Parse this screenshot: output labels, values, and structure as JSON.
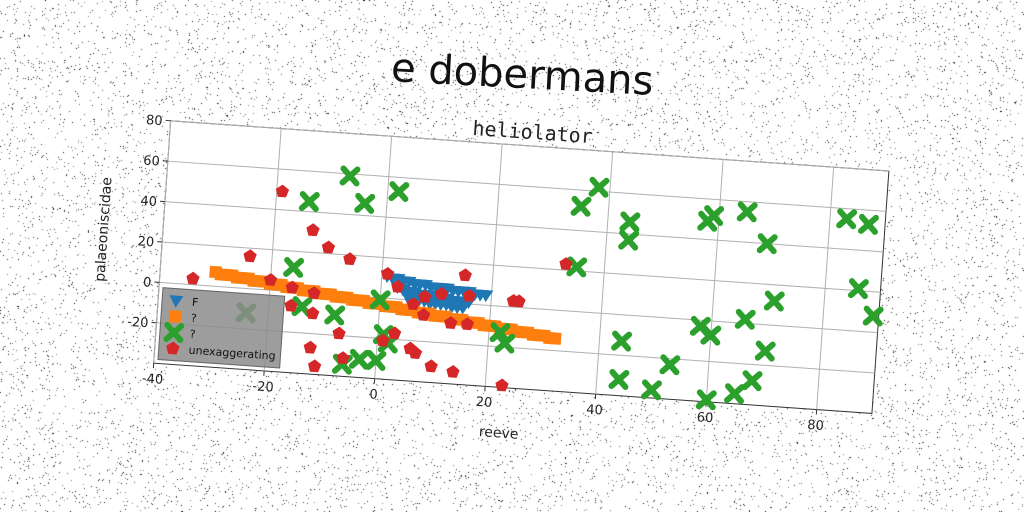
{
  "chart_data": {
    "type": "scatter",
    "title": "e dobermans",
    "subtitle": "heliolator",
    "xlabel": "reeve",
    "ylabel": "palaeoniscidae",
    "xlim": [
      -40,
      90
    ],
    "ylim": [
      -40,
      80
    ],
    "xticks": [
      "-40",
      "-20",
      "0",
      "20",
      "40",
      "60",
      "80"
    ],
    "yticks": [
      "-20",
      "0",
      "20",
      "40",
      "60",
      "80"
    ],
    "grid": true,
    "legend_position": "bottom-left",
    "colors": {
      "blue": "#1f77b4",
      "orange": "#ff7f0e",
      "green": "#2ca02c",
      "red": "#d62728"
    },
    "series": [
      {
        "name": "F",
        "marker": "triangle-down",
        "color": "#1f77b4",
        "points": [
          [
            1,
            11
          ],
          [
            2,
            10
          ],
          [
            3,
            10
          ],
          [
            4,
            9
          ],
          [
            5,
            9
          ],
          [
            6,
            8
          ],
          [
            7,
            8
          ],
          [
            8,
            8
          ],
          [
            9,
            7
          ],
          [
            10,
            7
          ],
          [
            11,
            7
          ],
          [
            12,
            7
          ],
          [
            13,
            6
          ],
          [
            14,
            6
          ],
          [
            15,
            6
          ],
          [
            16,
            6
          ],
          [
            17,
            5
          ],
          [
            18,
            5
          ],
          [
            19,
            5
          ],
          [
            3,
            6
          ],
          [
            4,
            5
          ],
          [
            5,
            4
          ],
          [
            6,
            4
          ],
          [
            7,
            3
          ],
          [
            8,
            3
          ],
          [
            9,
            3
          ],
          [
            10,
            2
          ],
          [
            11,
            2
          ],
          [
            12,
            2
          ],
          [
            13,
            1
          ],
          [
            14,
            1
          ],
          [
            15,
            1
          ],
          [
            16,
            1
          ],
          [
            5,
            1
          ],
          [
            6,
            0
          ],
          [
            7,
            0
          ],
          [
            8,
            0
          ],
          [
            9,
            -1
          ],
          [
            10,
            -1
          ],
          [
            11,
            -1
          ],
          [
            12,
            -1
          ],
          [
            13,
            -2
          ],
          [
            14,
            -2
          ],
          [
            15,
            -2
          ]
        ]
      },
      {
        "name": "?",
        "marker": "square",
        "color": "#ff7f0e",
        "points": [
          [
            -30,
            7
          ],
          [
            -29,
            6
          ],
          [
            -28,
            6
          ],
          [
            -27,
            6
          ],
          [
            -26,
            5
          ],
          [
            -25,
            5
          ],
          [
            -24,
            5
          ],
          [
            -23,
            4
          ],
          [
            -22,
            4
          ],
          [
            -21,
            4
          ],
          [
            -20,
            3
          ],
          [
            -19,
            3
          ],
          [
            -18,
            3
          ],
          [
            -17,
            2
          ],
          [
            -16,
            2
          ],
          [
            -15,
            2
          ],
          [
            -14,
            1
          ],
          [
            -13,
            1
          ],
          [
            -12,
            1
          ],
          [
            -11,
            0
          ],
          [
            -10,
            0
          ],
          [
            -9,
            0
          ],
          [
            -8,
            -1
          ],
          [
            -7,
            -1
          ],
          [
            -6,
            -1
          ],
          [
            -5,
            -2
          ],
          [
            -4,
            -2
          ],
          [
            -3,
            -2
          ],
          [
            -2,
            -3
          ],
          [
            -1,
            -3
          ],
          [
            0,
            -3
          ],
          [
            1,
            -4
          ],
          [
            2,
            -4
          ],
          [
            3,
            -4
          ],
          [
            4,
            -5
          ],
          [
            5,
            -5
          ],
          [
            6,
            -5
          ],
          [
            7,
            -6
          ],
          [
            8,
            -6
          ],
          [
            9,
            -6
          ],
          [
            10,
            -7
          ],
          [
            11,
            -7
          ],
          [
            12,
            -7
          ],
          [
            13,
            -8
          ],
          [
            14,
            -8
          ],
          [
            15,
            -8
          ],
          [
            16,
            -9
          ],
          [
            17,
            -9
          ],
          [
            18,
            -9
          ],
          [
            19,
            -10
          ],
          [
            20,
            -10
          ],
          [
            21,
            -10
          ],
          [
            22,
            -11
          ],
          [
            23,
            -11
          ],
          [
            24,
            -11
          ],
          [
            25,
            -12
          ],
          [
            26,
            -12
          ],
          [
            27,
            -12
          ],
          [
            28,
            -13
          ],
          [
            29,
            -13
          ],
          [
            30,
            -13
          ],
          [
            31,
            -14
          ],
          [
            32,
            -14
          ]
        ]
      },
      {
        "name": "?",
        "marker": "x-cross",
        "color": "#2ca02c",
        "points": [
          [
            -7,
            59
          ],
          [
            -4,
            46
          ],
          [
            2,
            53
          ],
          [
            -14,
            45
          ],
          [
            -16,
            12
          ],
          [
            -14,
            -7
          ],
          [
            -8,
            -10
          ],
          [
            0,
            -1
          ],
          [
            1,
            -18
          ],
          [
            2,
            -22
          ],
          [
            0,
            -31
          ],
          [
            -6,
            -34
          ],
          [
            -3,
            -31
          ],
          [
            -24,
            -12
          ],
          [
            22,
            -13
          ],
          [
            23,
            -18
          ],
          [
            35,
            22
          ],
          [
            35,
            52
          ],
          [
            38,
            62
          ],
          [
            44,
            46
          ],
          [
            44,
            37
          ],
          [
            44,
            -13
          ],
          [
            44,
            -32
          ],
          [
            50,
            -36
          ],
          [
            53,
            -23
          ],
          [
            58,
            -3
          ],
          [
            60,
            -7
          ],
          [
            59,
            52
          ],
          [
            58,
            49
          ],
          [
            60,
            -39
          ],
          [
            65,
            -35
          ],
          [
            65,
            55
          ],
          [
            66,
            2
          ],
          [
            68,
            -28
          ],
          [
            69,
            40
          ],
          [
            70,
            -13
          ],
          [
            71,
            12
          ],
          [
            83,
            55
          ],
          [
            87,
            53
          ],
          [
            86,
            21
          ],
          [
            89,
            8
          ]
        ]
      },
      {
        "name": "unexaggerating",
        "marker": "pentagon",
        "color": "#d62728",
        "points": [
          [
            -34,
            3
          ],
          [
            -24,
            16
          ],
          [
            -19,
            49
          ],
          [
            -13,
            31
          ],
          [
            -10,
            23
          ],
          [
            -20,
            5
          ],
          [
            -16,
            2
          ],
          [
            -12,
            0
          ],
          [
            -6,
            18
          ],
          [
            1,
            12
          ],
          [
            3,
            6
          ],
          [
            -16,
            -7
          ],
          [
            -12,
            -10
          ],
          [
            -7,
            -19
          ],
          [
            -12,
            -27
          ],
          [
            -11,
            -36
          ],
          [
            -6,
            -31
          ],
          [
            1,
            -21
          ],
          [
            3,
            -17
          ],
          [
            6,
            -24
          ],
          [
            7,
            -26
          ],
          [
            8,
            -7
          ],
          [
            6,
            -2
          ],
          [
            8,
            2
          ],
          [
            11,
            4
          ],
          [
            15,
            14
          ],
          [
            16,
            4
          ],
          [
            13,
            -10
          ],
          [
            16,
            -10
          ],
          [
            10,
            -32
          ],
          [
            14,
            -34
          ],
          [
            24,
            3
          ],
          [
            25,
            3
          ],
          [
            33,
            23
          ],
          [
            23,
            -39
          ]
        ]
      }
    ]
  }
}
